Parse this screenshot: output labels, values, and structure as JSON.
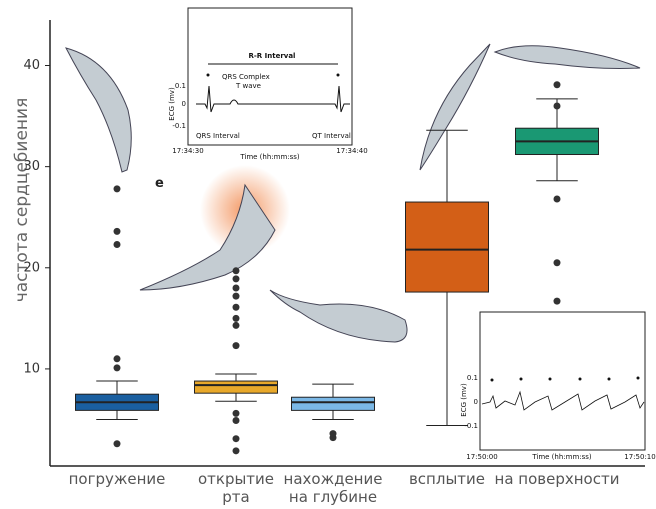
{
  "chart_data": {
    "type": "box",
    "y_label": "частота сердцебиения",
    "categories": [
      "погружение",
      "открытие рта",
      "нахождение на глубине",
      "всплытие",
      "на поверхности"
    ],
    "boxes": [
      {
        "color": "#1a5fa0",
        "whisker_low": 5.0,
        "q1": 5.9,
        "median": 6.7,
        "q3": 7.5,
        "whisker_high": 8.8,
        "outliers": [
          2.6,
          10.1,
          11.0,
          22.3,
          23.6,
          27.8
        ]
      },
      {
        "color": "#e8a82a",
        "whisker_low": 6.8,
        "q1": 7.6,
        "median": 8.4,
        "q3": 8.8,
        "whisker_high": 9.5,
        "outliers": [
          1.9,
          3.1,
          4.9,
          5.6,
          12.3,
          14.3,
          15.0,
          16.1,
          17.2,
          18.0,
          18.9,
          19.7
        ]
      },
      {
        "color": "#7bb8e6",
        "whisker_low": 5.0,
        "q1": 5.9,
        "median": 6.7,
        "q3": 7.2,
        "whisker_high": 8.5,
        "outliers": [
          3.2,
          3.6
        ]
      },
      {
        "color": "#d35f17",
        "whisker_low": 4.4,
        "q1": 17.6,
        "median": 21.8,
        "q3": 26.5,
        "whisker_high": 33.6,
        "outliers": []
      },
      {
        "color": "#1a9873",
        "whisker_low": 28.6,
        "q1": 31.2,
        "median": 32.5,
        "q3": 33.8,
        "whisker_high": 36.7,
        "outliers": [
          16.7,
          20.5,
          26.8,
          36.0,
          38.1
        ]
      }
    ],
    "ylim": [
      0.4,
      44.5
    ],
    "yticks": [
      10,
      20,
      30,
      40
    ],
    "annotation": "e"
  },
  "insets": [
    {
      "title": "R-R Interval",
      "labels": [
        "QRS Complex",
        "T wave",
        "QRS Interval",
        "QT Interval"
      ],
      "y_label": "ECG (mv)",
      "yticks": [
        "0.1",
        "0",
        "-0.1"
      ],
      "x_label": "Time (hh:mm:ss)",
      "x_start": "17:34:30",
      "x_end": "17:34:40"
    },
    {
      "y_label": "ECG (mv)",
      "yticks": [
        "0.1",
        "0",
        "-0.1"
      ],
      "x_label": "Time (hh:mm:ss)",
      "x_start": "17:50:00",
      "x_end": "17:50:10"
    }
  ]
}
